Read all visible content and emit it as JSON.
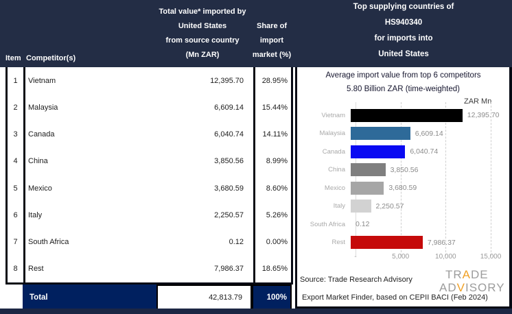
{
  "table": {
    "headers": {
      "item": "Item",
      "competitor": "Competitor(s)",
      "value_lines": [
        "Total value* imported by",
        "United States",
        "from source country",
        "(Mn ZAR)"
      ],
      "share_lines": [
        "Share of",
        "import",
        "market (%)"
      ]
    },
    "rows": [
      {
        "item": "1",
        "competitor": "Vietnam",
        "value": "12,395.70",
        "share": "28.95%"
      },
      {
        "item": "2",
        "competitor": "Malaysia",
        "value": "6,609.14",
        "share": "15.44%"
      },
      {
        "item": "3",
        "competitor": "Canada",
        "value": "6,040.74",
        "share": "14.11%"
      },
      {
        "item": "4",
        "competitor": "China",
        "value": "3,850.56",
        "share": "8.99%"
      },
      {
        "item": "5",
        "competitor": "Mexico",
        "value": "3,680.59",
        "share": "8.60%"
      },
      {
        "item": "6",
        "competitor": "Italy",
        "value": "2,250.57",
        "share": "5.26%"
      },
      {
        "item": "7",
        "competitor": "South Africa",
        "value": "0.12",
        "share": "0.00%"
      },
      {
        "item": "8",
        "competitor": "Rest",
        "value": "7,986.37",
        "share": "18.65%"
      }
    ],
    "total": {
      "label": "Total",
      "value": "42,813.79",
      "share": "100%"
    }
  },
  "panel": {
    "title_lines": [
      "Top supplying countries of",
      "HS940340",
      "for imports into",
      "United States"
    ],
    "subtitle_line1": "Average import value from top 6 competitors",
    "subtitle_line2": "5.80 Billion ZAR (time-weighted)",
    "unit_label": "ZAR Mn",
    "source_line1": "Source: Trade Research Advisory",
    "source_line2": "Export Market Finder, based on CEPII BACI (Feb 2024)",
    "logo": {
      "line1": "TRADE",
      "line2": "ADVISORY",
      "accent1": "A",
      "accent2": "V",
      "accent_color": "#f0a024"
    }
  },
  "chart_data": {
    "type": "bar",
    "orientation": "horizontal",
    "title": "Average import value from top 6 competitors",
    "subtitle": "5.80 Billion ZAR (time-weighted)",
    "unit": "ZAR Mn",
    "categories": [
      "Vietnam",
      "Malaysia",
      "Canada",
      "China",
      "Mexico",
      "Italy",
      "South Africa",
      "Rest"
    ],
    "values": [
      12395.7,
      6609.14,
      6040.74,
      3850.56,
      3680.59,
      2250.57,
      0.12,
      7986.37
    ],
    "value_labels": [
      "12,395.70",
      "6,609.14",
      "6,040.74",
      "3,850.56",
      "3,680.59",
      "2,250.57",
      "0.12",
      "7,986.37"
    ],
    "bar_colors": [
      "#000000",
      "#2e6a99",
      "#0a0af2",
      "#7f7f7f",
      "#a6a6a6",
      "#d2d2d2",
      "#d2d2d2",
      "#c50a0a"
    ],
    "xlim": [
      0,
      15000
    ],
    "x_ticks": [
      "-",
      "5,000",
      "10,000",
      "15,000"
    ],
    "x_tick_values": [
      0,
      5000,
      10000,
      15000
    ],
    "gridlines": "dashed-vertical",
    "legend": "none"
  },
  "colors": {
    "header_band": "#232d45",
    "total_row": "#00205f",
    "bottom_strip": "#1c2744",
    "table_border": "#060a14",
    "category_label": "#a9a9a9",
    "value_label": "#8a8a8a",
    "logo_gray": "#9c9c9c",
    "logo_accent": "#f0a024"
  }
}
